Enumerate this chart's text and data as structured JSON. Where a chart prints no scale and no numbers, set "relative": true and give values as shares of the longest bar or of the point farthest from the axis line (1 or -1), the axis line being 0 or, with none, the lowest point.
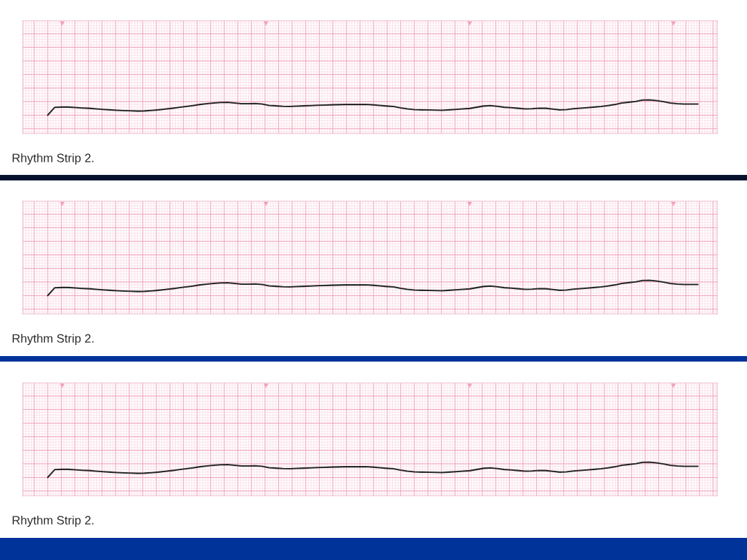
{
  "chart_data": [
    {
      "type": "line",
      "relative": true,
      "grid": true,
      "tick_labels": false,
      "categories": [
        null,
        null,
        null,
        null,
        null,
        null,
        null,
        null,
        null,
        null,
        null,
        null,
        null,
        null,
        null,
        null,
        null,
        null,
        null,
        null,
        null,
        null,
        null,
        null,
        null,
        null,
        null,
        null,
        null,
        null,
        null,
        null,
        null,
        null,
        null,
        null,
        null,
        null,
        null,
        null,
        null,
        null,
        null,
        null,
        null,
        null,
        null,
        null,
        null,
        null,
        null,
        null,
        null,
        null,
        null,
        null,
        null,
        null,
        null,
        null,
        null,
        null,
        null,
        null,
        null,
        null,
        null,
        null,
        null,
        null,
        null,
        null,
        null,
        null,
        null,
        null,
        null,
        null,
        null,
        null,
        null,
        null,
        null,
        null,
        null,
        null,
        null,
        null,
        null,
        null,
        null,
        null,
        null,
        null,
        null
      ],
      "series": [
        {
          "color": "#262626",
          "values": [
            0.0,
            0.51,
            0.53,
            0.53,
            0.5,
            0.47,
            0.45,
            0.41,
            0.38,
            0.35,
            0.32,
            0.3,
            0.29,
            0.27,
            0.28,
            0.31,
            0.35,
            0.4,
            0.45,
            0.51,
            0.57,
            0.63,
            0.7,
            0.75,
            0.8,
            0.83,
            0.84,
            0.8,
            0.75,
            0.75,
            0.76,
            0.73,
            0.64,
            0.61,
            0.58,
            0.57,
            0.59,
            0.61,
            0.63,
            0.65,
            0.66,
            0.68,
            0.69,
            0.7,
            0.7,
            0.7,
            0.71,
            0.68,
            0.64,
            0.6,
            0.57,
            0.48,
            0.41,
            0.37,
            0.35,
            0.34,
            0.33,
            0.32,
            0.35,
            0.38,
            0.41,
            0.44,
            0.52,
            0.6,
            0.63,
            0.58,
            0.52,
            0.49,
            0.45,
            0.41,
            0.42,
            0.46,
            0.45,
            0.4,
            0.35,
            0.37,
            0.42,
            0.46,
            0.49,
            0.53,
            0.57,
            0.63,
            0.7,
            0.8,
            0.85,
            0.9,
            0.99,
            1.0,
            0.96,
            0.89,
            0.8,
            0.75,
            0.73,
            0.73,
            0.73
          ]
        }
      ],
      "annotations": [
        "Rhythm Strip 2."
      ]
    },
    {
      "type": "line",
      "relative": true,
      "grid": true,
      "tick_labels": false,
      "categories": [
        null,
        null,
        null,
        null,
        null,
        null,
        null,
        null,
        null,
        null,
        null,
        null,
        null,
        null,
        null,
        null,
        null,
        null,
        null,
        null,
        null,
        null,
        null,
        null,
        null,
        null,
        null,
        null,
        null,
        null,
        null,
        null,
        null,
        null,
        null,
        null,
        null,
        null,
        null,
        null,
        null,
        null,
        null,
        null,
        null,
        null,
        null,
        null,
        null,
        null,
        null,
        null,
        null,
        null,
        null,
        null,
        null,
        null,
        null,
        null,
        null,
        null,
        null,
        null,
        null,
        null,
        null,
        null,
        null,
        null,
        null,
        null,
        null,
        null,
        null,
        null,
        null,
        null,
        null,
        null,
        null,
        null,
        null,
        null,
        null,
        null,
        null,
        null,
        null,
        null,
        null,
        null,
        null,
        null,
        null
      ],
      "series": [
        {
          "color": "#262626",
          "values": [
            0.0,
            0.51,
            0.53,
            0.53,
            0.5,
            0.47,
            0.45,
            0.41,
            0.38,
            0.35,
            0.32,
            0.3,
            0.29,
            0.27,
            0.28,
            0.31,
            0.35,
            0.4,
            0.45,
            0.51,
            0.57,
            0.63,
            0.7,
            0.75,
            0.8,
            0.83,
            0.84,
            0.8,
            0.75,
            0.75,
            0.76,
            0.73,
            0.64,
            0.61,
            0.58,
            0.57,
            0.59,
            0.61,
            0.63,
            0.65,
            0.66,
            0.68,
            0.69,
            0.7,
            0.7,
            0.7,
            0.71,
            0.68,
            0.64,
            0.6,
            0.57,
            0.48,
            0.41,
            0.37,
            0.35,
            0.34,
            0.33,
            0.32,
            0.35,
            0.38,
            0.41,
            0.44,
            0.52,
            0.6,
            0.63,
            0.58,
            0.52,
            0.49,
            0.45,
            0.41,
            0.42,
            0.46,
            0.45,
            0.4,
            0.35,
            0.37,
            0.42,
            0.46,
            0.49,
            0.53,
            0.57,
            0.63,
            0.7,
            0.8,
            0.85,
            0.9,
            0.99,
            1.0,
            0.96,
            0.89,
            0.8,
            0.75,
            0.73,
            0.73,
            0.73
          ]
        }
      ],
      "annotations": [
        "Rhythm Strip 2."
      ]
    },
    {
      "type": "line",
      "relative": true,
      "grid": true,
      "tick_labels": false,
      "categories": [
        null,
        null,
        null,
        null,
        null,
        null,
        null,
        null,
        null,
        null,
        null,
        null,
        null,
        null,
        null,
        null,
        null,
        null,
        null,
        null,
        null,
        null,
        null,
        null,
        null,
        null,
        null,
        null,
        null,
        null,
        null,
        null,
        null,
        null,
        null,
        null,
        null,
        null,
        null,
        null,
        null,
        null,
        null,
        null,
        null,
        null,
        null,
        null,
        null,
        null,
        null,
        null,
        null,
        null,
        null,
        null,
        null,
        null,
        null,
        null,
        null,
        null,
        null,
        null,
        null,
        null,
        null,
        null,
        null,
        null,
        null,
        null,
        null,
        null,
        null,
        null,
        null,
        null,
        null,
        null,
        null,
        null,
        null,
        null,
        null,
        null,
        null,
        null,
        null,
        null,
        null,
        null,
        null,
        null,
        null
      ],
      "series": [
        {
          "color": "#262626",
          "values": [
            0.0,
            0.51,
            0.53,
            0.53,
            0.5,
            0.47,
            0.45,
            0.41,
            0.38,
            0.35,
            0.32,
            0.3,
            0.29,
            0.27,
            0.28,
            0.31,
            0.35,
            0.4,
            0.45,
            0.51,
            0.57,
            0.63,
            0.7,
            0.75,
            0.8,
            0.83,
            0.84,
            0.8,
            0.75,
            0.75,
            0.76,
            0.73,
            0.64,
            0.61,
            0.58,
            0.57,
            0.59,
            0.61,
            0.63,
            0.65,
            0.66,
            0.68,
            0.69,
            0.7,
            0.7,
            0.7,
            0.71,
            0.68,
            0.64,
            0.6,
            0.57,
            0.48,
            0.41,
            0.37,
            0.35,
            0.34,
            0.33,
            0.32,
            0.35,
            0.38,
            0.41,
            0.44,
            0.52,
            0.6,
            0.63,
            0.58,
            0.52,
            0.49,
            0.45,
            0.41,
            0.42,
            0.46,
            0.45,
            0.4,
            0.35,
            0.37,
            0.42,
            0.46,
            0.49,
            0.53,
            0.57,
            0.63,
            0.7,
            0.8,
            0.85,
            0.9,
            0.99,
            1.0,
            0.96,
            0.89,
            0.8,
            0.75,
            0.73,
            0.73,
            0.73
          ]
        }
      ],
      "annotations": [
        "Rhythm Strip 2."
      ]
    }
  ]
}
